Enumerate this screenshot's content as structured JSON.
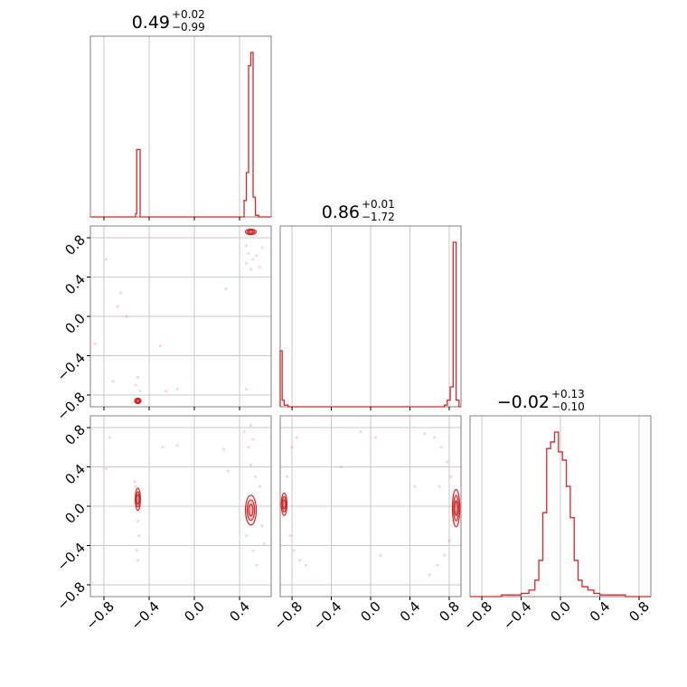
{
  "chart_data": {
    "type": "corner",
    "parameters": [
      "",
      "",
      ""
    ],
    "titles": [
      {
        "value": "0.49",
        "plus": "+0.02",
        "minus": "−0.99"
      },
      {
        "value": "0.86",
        "plus": "+0.01",
        "minus": "−1.72"
      },
      {
        "value": "−0.02",
        "plus": "+0.13",
        "minus": "−0.10"
      }
    ],
    "axis_ranges": [
      [
        -0.92,
        0.68
      ],
      [
        -0.92,
        0.92
      ],
      [
        -0.92,
        0.92
      ]
    ],
    "ticks": [
      -0.8,
      -0.4,
      0.0,
      0.4,
      0.8
    ],
    "tick_labels": [
      "−0.8",
      "−0.4",
      "0.0",
      "0.4",
      "0.8"
    ],
    "grid": true,
    "color": "#d62728",
    "histograms": [
      {
        "bin_edges": [
          -0.92,
          -0.52,
          -0.51,
          -0.48,
          0.44,
          0.46,
          0.48,
          0.5,
          0.52,
          0.54,
          0.57,
          0.68
        ],
        "counts": [
          0,
          0.02,
          0.41,
          0,
          0.1,
          0.27,
          0.92,
          1.0,
          0.12,
          0.01,
          0
        ]
      },
      {
        "bin_edges": [
          -0.92,
          -0.9,
          -0.88,
          -0.84,
          0.75,
          0.78,
          0.81,
          0.84,
          0.87,
          0.9,
          0.92
        ],
        "counts": [
          0.34,
          0.04,
          0.01,
          0.0,
          0.01,
          0.04,
          0.12,
          1.0,
          0.04,
          0
        ],
        "note_counts": "relative heights"
      },
      {
        "bin_edges": [
          -0.92,
          -0.6,
          -0.48,
          -0.4,
          -0.32,
          -0.26,
          -0.22,
          -0.18,
          -0.14,
          -0.1,
          -0.06,
          -0.02,
          0.02,
          0.06,
          0.1,
          0.14,
          0.18,
          0.22,
          0.28,
          0.34,
          0.4,
          0.48,
          0.56,
          0.66,
          0.92
        ],
        "counts": [
          0,
          0.01,
          0.01,
          0.02,
          0.04,
          0.1,
          0.22,
          0.51,
          0.9,
          0.94,
          1.0,
          0.88,
          0.83,
          0.67,
          0.48,
          0.22,
          0.1,
          0.06,
          0.04,
          0.02,
          0.01,
          0.01,
          0.01,
          0
        ]
      }
    ],
    "pairs": [
      {
        "row": 1,
        "col": 0,
        "modes": [
          {
            "x": 0.5,
            "y": 0.86,
            "sx": 0.025,
            "sy": 0.015
          },
          {
            "x": -0.5,
            "y": -0.86,
            "sx": 0.015,
            "sy": 0.015
          }
        ],
        "scatter": [
          [
            0.46,
            0.72
          ],
          [
            0.48,
            0.64
          ],
          [
            0.52,
            0.58
          ],
          [
            0.55,
            0.62
          ],
          [
            0.5,
            0.48
          ],
          [
            0.58,
            0.5
          ],
          [
            0.46,
            0.54
          ],
          [
            0.6,
            0.7
          ],
          [
            0.28,
            0.28
          ],
          [
            -0.78,
            0.58
          ],
          [
            -0.68,
            0.1
          ],
          [
            -0.6,
            0.0
          ],
          [
            -0.65,
            0.24
          ],
          [
            -0.3,
            -0.3
          ],
          [
            -0.52,
            -0.7
          ],
          [
            -0.5,
            -0.62
          ],
          [
            -0.48,
            -0.76
          ],
          [
            -0.25,
            -0.76
          ],
          [
            -0.15,
            -0.74
          ],
          [
            0.46,
            -0.74
          ],
          [
            -0.88,
            -0.28
          ],
          [
            -0.72,
            -0.66
          ]
        ]
      },
      {
        "row": 2,
        "col": 0,
        "modes": [
          {
            "x": -0.5,
            "y": 0.07,
            "sx": 0.012,
            "sy": 0.06
          },
          {
            "x": 0.5,
            "y": -0.04,
            "sx": 0.025,
            "sy": 0.08
          }
        ],
        "scatter": [
          [
            -0.52,
            0.2
          ],
          [
            -0.5,
            -0.15
          ],
          [
            -0.49,
            -0.3
          ],
          [
            -0.51,
            -0.45
          ],
          [
            -0.5,
            -0.55
          ],
          [
            -0.53,
            0.25
          ],
          [
            0.48,
            0.6
          ],
          [
            0.5,
            0.42
          ],
          [
            0.54,
            0.3
          ],
          [
            0.46,
            -0.3
          ],
          [
            0.52,
            -0.45
          ],
          [
            0.55,
            -0.6
          ],
          [
            0.6,
            -0.2
          ],
          [
            0.58,
            0.2
          ],
          [
            0.62,
            -0.38
          ],
          [
            0.44,
            0.76
          ],
          [
            0.5,
            0.82
          ],
          [
            -0.75,
            0.7
          ],
          [
            -0.28,
            0.6
          ],
          [
            -0.15,
            0.62
          ],
          [
            -0.78,
            0.38
          ],
          [
            0.26,
            0.58
          ],
          [
            0.3,
            0.36
          ],
          [
            0.52,
            0.68
          ]
        ]
      },
      {
        "row": 2,
        "col": 1,
        "modes": [
          {
            "x": 0.87,
            "y": -0.02,
            "sx": 0.02,
            "sy": 0.1
          },
          {
            "x": -0.88,
            "y": 0.02,
            "sx": 0.015,
            "sy": 0.06
          }
        ],
        "scatter": [
          [
            0.78,
            0.45
          ],
          [
            0.72,
            0.6
          ],
          [
            0.65,
            0.7
          ],
          [
            0.82,
            0.3
          ],
          [
            0.8,
            -0.35
          ],
          [
            0.75,
            -0.5
          ],
          [
            0.68,
            -0.6
          ],
          [
            0.6,
            -0.7
          ],
          [
            0.7,
            0.2
          ],
          [
            0.55,
            0.74
          ],
          [
            -0.85,
            0.3
          ],
          [
            -0.82,
            -0.3
          ],
          [
            -0.78,
            -0.45
          ],
          [
            -0.72,
            -0.55
          ],
          [
            -0.66,
            -0.6
          ],
          [
            -0.8,
            0.6
          ],
          [
            -0.75,
            0.7
          ],
          [
            -0.3,
            0.4
          ],
          [
            0.1,
            -0.5
          ],
          [
            0.05,
            0.7
          ],
          [
            -0.1,
            0.76
          ],
          [
            0.45,
            0.2
          ]
        ]
      }
    ]
  }
}
